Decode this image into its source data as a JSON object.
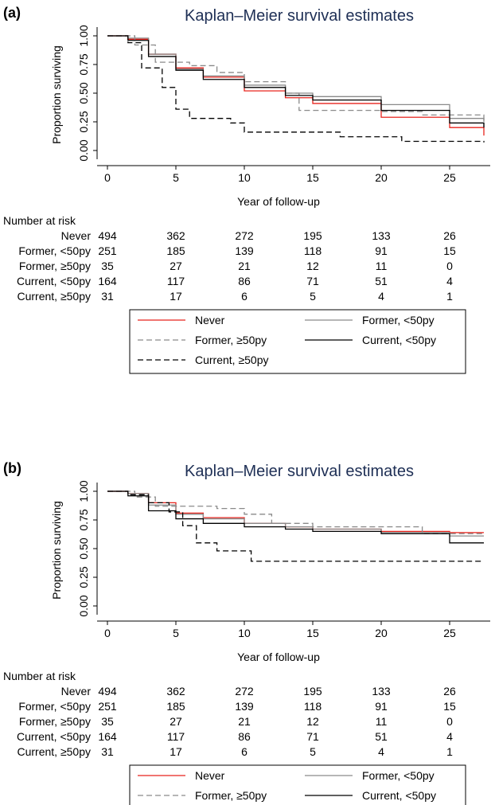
{
  "chart_data": [
    {
      "panel_label": "(a)",
      "type": "line",
      "title": "Kaplan–Meier survival estimates",
      "xlabel": "Year of follow-up",
      "ylabel": "Proportion surviving",
      "xlim": [
        0,
        27.8
      ],
      "ylim": [
        0,
        1
      ],
      "xticks": [
        "0",
        "5",
        "10",
        "15",
        "20",
        "25"
      ],
      "yticks": [
        "0.00",
        "0.25",
        "0.50",
        "0.75",
        "1.00"
      ],
      "series": [
        {
          "name": "Never",
          "color": "#e8231c",
          "dash": "solid",
          "x": [
            0,
            1.5,
            3,
            5,
            7,
            10,
            13,
            15,
            20,
            25,
            27.5
          ],
          "y": [
            1.0,
            0.97,
            0.84,
            0.72,
            0.64,
            0.52,
            0.46,
            0.41,
            0.29,
            0.2,
            0.13
          ]
        },
        {
          "name": "Former, <50py",
          "color": "#8a8a8a",
          "dash": "solid",
          "x": [
            0,
            1.5,
            3,
            5,
            7,
            10,
            13,
            15,
            20,
            25,
            27.5
          ],
          "y": [
            1.0,
            0.98,
            0.84,
            0.71,
            0.65,
            0.57,
            0.5,
            0.47,
            0.4,
            0.28,
            0.25
          ]
        },
        {
          "name": "Former, ≥50py",
          "color": "#8a8a8a",
          "dash": "dashed",
          "x": [
            0,
            2,
            3.5,
            6,
            8,
            10,
            13,
            14,
            17,
            20,
            23,
            27.5
          ],
          "y": [
            1.0,
            0.92,
            0.77,
            0.74,
            0.68,
            0.6,
            0.5,
            0.35,
            0.35,
            0.34,
            0.31,
            0.2
          ]
        },
        {
          "name": "Current, <50py",
          "color": "#000000",
          "dash": "solid",
          "x": [
            0,
            1.5,
            3,
            5,
            7,
            10,
            13,
            15,
            20,
            25,
            27.5
          ],
          "y": [
            1.0,
            0.96,
            0.82,
            0.7,
            0.62,
            0.55,
            0.48,
            0.44,
            0.35,
            0.24,
            0.2
          ]
        },
        {
          "name": "Current, ≥50py",
          "color": "#000000",
          "dash": "dashed",
          "x": [
            0,
            1.5,
            2.5,
            4,
            5,
            6,
            9,
            10,
            17,
            21.5,
            27.5
          ],
          "y": [
            1.0,
            0.94,
            0.72,
            0.55,
            0.36,
            0.28,
            0.24,
            0.16,
            0.12,
            0.08,
            0.07
          ]
        }
      ]
    },
    {
      "panel_label": "(b)",
      "type": "line",
      "title": "Kaplan–Meier survival estimates",
      "xlabel": "Year of follow-up",
      "ylabel": "Proportion surviving",
      "xlim": [
        0,
        27.8
      ],
      "ylim": [
        0,
        1
      ],
      "xticks": [
        "0",
        "5",
        "10",
        "15",
        "20",
        "25"
      ],
      "yticks": [
        "0.00",
        "0.25",
        "0.50",
        "0.75",
        "1.00"
      ],
      "series": [
        {
          "name": "Never",
          "color": "#e8231c",
          "dash": "solid",
          "x": [
            0,
            1.5,
            3,
            5,
            7,
            10,
            13,
            15,
            20,
            25,
            27.5
          ],
          "y": [
            1.0,
            0.98,
            0.9,
            0.81,
            0.77,
            0.72,
            0.69,
            0.67,
            0.65,
            0.64,
            0.64
          ]
        },
        {
          "name": "Former, <50py",
          "color": "#8a8a8a",
          "dash": "solid",
          "x": [
            0,
            1.5,
            3,
            5,
            7,
            10,
            13,
            15,
            20,
            25,
            27.5
          ],
          "y": [
            1.0,
            0.98,
            0.88,
            0.8,
            0.76,
            0.72,
            0.69,
            0.67,
            0.64,
            0.61,
            0.61
          ]
        },
        {
          "name": "Former, ≥50py",
          "color": "#8a8a8a",
          "dash": "dashed",
          "x": [
            0,
            2,
            3.5,
            8,
            10,
            12,
            15,
            20,
            23,
            27.5
          ],
          "y": [
            1.0,
            0.95,
            0.87,
            0.85,
            0.8,
            0.72,
            0.69,
            0.69,
            0.63,
            0.63
          ]
        },
        {
          "name": "Current, <50py",
          "color": "#000000",
          "dash": "solid",
          "x": [
            0,
            1.5,
            3,
            5,
            7,
            10,
            13,
            15,
            20,
            25,
            27.5
          ],
          "y": [
            1.0,
            0.96,
            0.83,
            0.76,
            0.72,
            0.69,
            0.67,
            0.65,
            0.63,
            0.55,
            0.55
          ]
        },
        {
          "name": "Current, ≥50py",
          "color": "#000000",
          "dash": "dashed",
          "x": [
            0,
            1.5,
            3,
            4.5,
            5.5,
            6.5,
            8,
            10.5,
            27.5
          ],
          "y": [
            1.0,
            0.97,
            0.9,
            0.82,
            0.7,
            0.55,
            0.48,
            0.39,
            0.39
          ]
        }
      ]
    }
  ],
  "risk_table": {
    "header": "Number at risk",
    "rows": [
      {
        "label": "Never",
        "values": [
          "494",
          "362",
          "272",
          "195",
          "133",
          "26"
        ]
      },
      {
        "label": "Former, <50py",
        "values": [
          "251",
          "185",
          "139",
          "118",
          "91",
          "15"
        ]
      },
      {
        "label": "Former, ≥50py",
        "values": [
          "35",
          "27",
          "21",
          "12",
          "11",
          "0"
        ]
      },
      {
        "label": "Current, <50py",
        "values": [
          "164",
          "117",
          "86",
          "71",
          "51",
          "4"
        ]
      },
      {
        "label": "Current, ≥50py",
        "values": [
          "31",
          "17",
          "6",
          "5",
          "4",
          "1"
        ]
      }
    ]
  },
  "legend": {
    "entries": [
      {
        "label": "Never",
        "color": "#e8231c",
        "dash": "solid"
      },
      {
        "label": "Former, <50py",
        "color": "#8a8a8a",
        "dash": "solid"
      },
      {
        "label": "Former, ≥50py",
        "color": "#8a8a8a",
        "dash": "dashed"
      },
      {
        "label": "Current, <50py",
        "color": "#000000",
        "dash": "solid"
      },
      {
        "label": "Current, ≥50py",
        "color": "#000000",
        "dash": "dashed"
      }
    ]
  }
}
